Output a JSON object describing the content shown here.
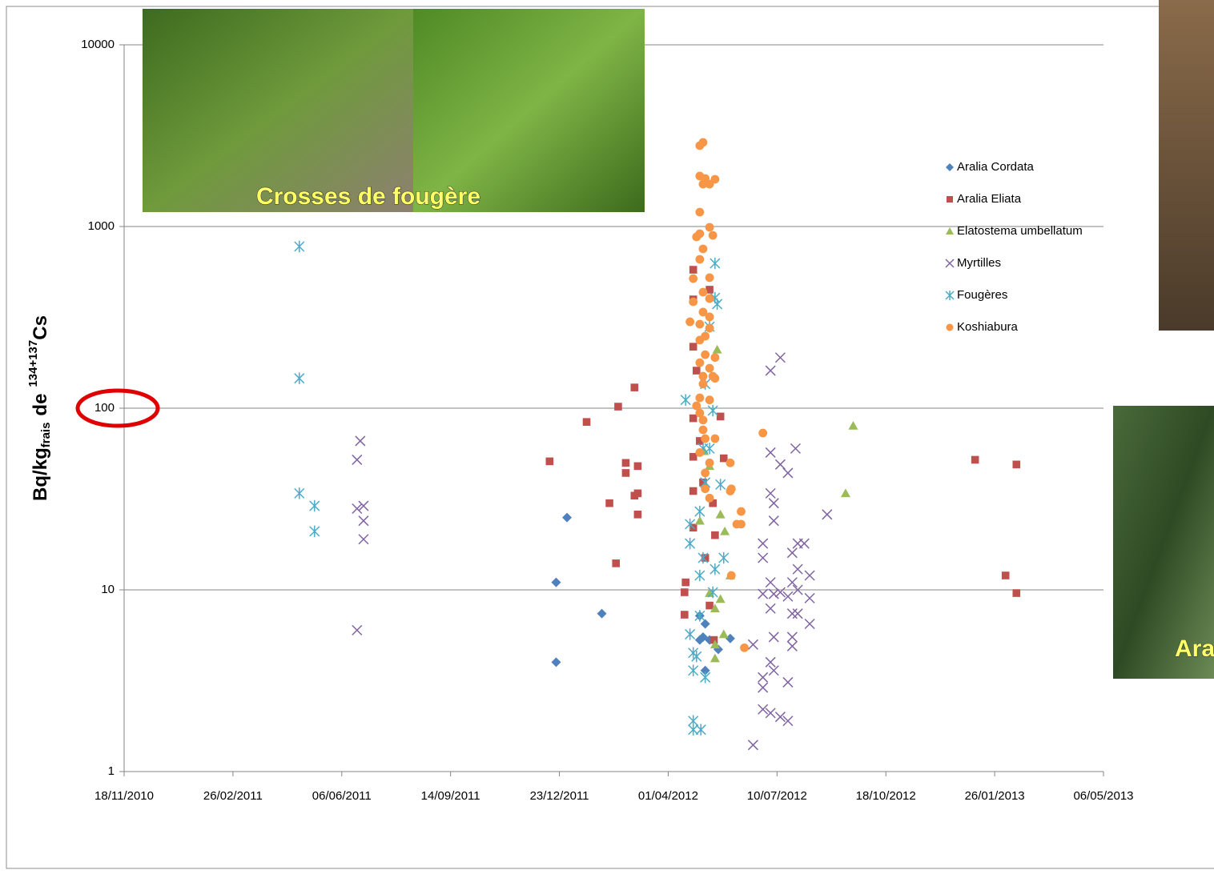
{
  "chart_data": {
    "type": "scatter",
    "y_label": {
      "main": "Bq/kg",
      "sub": "frais",
      "word": "de",
      "sup": "134+137",
      "element": "Cs"
    },
    "annotations": [
      "Crosses de fougère",
      "Ara"
    ],
    "xlim": [
      "2010-11-18",
      "2013-05-06"
    ],
    "xticks": [
      {
        "value": "2010-11-18",
        "label": "18/11/2010"
      },
      {
        "value": "2011-02-26",
        "label": "26/02/2011"
      },
      {
        "value": "2011-06-06",
        "label": "06/06/2011"
      },
      {
        "value": "2011-09-14",
        "label": "14/09/2011"
      },
      {
        "value": "2011-12-23",
        "label": "23/12/2011"
      },
      {
        "value": "2012-04-01",
        "label": "01/04/2012"
      },
      {
        "value": "2012-07-10",
        "label": "10/07/2012"
      },
      {
        "value": "2012-10-18",
        "label": "18/10/2012"
      },
      {
        "value": "2013-01-26",
        "label": "26/01/2013"
      },
      {
        "value": "2013-05-06",
        "label": "06/05/2013"
      }
    ],
    "ylim": [
      1,
      10000
    ],
    "yticks": [
      1,
      10,
      100,
      1000,
      10000
    ],
    "log_y": true,
    "grid": true,
    "legend": "upper right",
    "series": [
      {
        "name": "Aralia Cordata",
        "color": "#4f81bd",
        "marker": "diamond",
        "x": [
          "2011-12-30",
          "2011-12-20",
          "2011-12-20",
          "2012-01-31",
          "2012-04-30",
          "2012-05-05",
          "2012-05-03",
          "2012-05-09",
          "2012-04-30",
          "2012-05-05",
          "2012-05-28",
          "2012-05-17"
        ],
        "values": [
          25,
          11,
          4,
          7.4,
          7.2,
          6.5,
          5.5,
          5.3,
          5.3,
          3.6,
          5.4,
          4.7
        ]
      },
      {
        "name": "Aralia Eliata",
        "color": "#c0504d",
        "marker": "square",
        "x": [
          "2011-12-14",
          "2012-01-17",
          "2012-02-07",
          "2012-02-13",
          "2012-02-15",
          "2012-02-22",
          "2012-02-22",
          "2012-03-01",
          "2012-03-01",
          "2012-03-04",
          "2012-03-04",
          "2012-03-04",
          "2012-04-16",
          "2012-04-16",
          "2012-04-17",
          "2012-04-24",
          "2012-04-24",
          "2012-04-24",
          "2012-04-24",
          "2012-04-24",
          "2012-04-24",
          "2012-04-24",
          "2012-04-27",
          "2012-04-30",
          "2012-05-03",
          "2012-05-05",
          "2012-05-09",
          "2012-05-09",
          "2012-05-12",
          "2012-05-14",
          "2012-05-19",
          "2012-05-22",
          "2012-05-13",
          "2013-01-08",
          "2013-02-05",
          "2013-02-15",
          "2013-02-15"
        ],
        "values": [
          51,
          84,
          30,
          14,
          102,
          50,
          44,
          130,
          33,
          48,
          34,
          26,
          9.7,
          7.3,
          11,
          578,
          397,
          218,
          88,
          54,
          35,
          22,
          161,
          66,
          39,
          15,
          8.2,
          449,
          30,
          20,
          90,
          53,
          5.3,
          52,
          12,
          49,
          9.6
        ]
      },
      {
        "name": "Elatostema umbellatum",
        "color": "#9bbb59",
        "marker": "triangle",
        "x": [
          "2012-09-18",
          "2012-09-11",
          "2012-05-16",
          "2012-05-09",
          "2012-05-09",
          "2012-05-14",
          "2012-05-19",
          "2012-05-23",
          "2012-05-28",
          "2012-05-19",
          "2012-05-14",
          "2012-05-14",
          "2012-05-04",
          "2012-04-30",
          "2012-05-22"
        ],
        "values": [
          80,
          34,
          210,
          48,
          9.6,
          7.9,
          26,
          21,
          12,
          8.9,
          5,
          4.2,
          58,
          24,
          5.7
        ]
      },
      {
        "name": "Myrtilles",
        "color": "#8064a2",
        "marker": "x",
        "x": [
          "2011-06-20",
          "2011-06-23",
          "2011-06-20",
          "2011-06-26",
          "2011-06-26",
          "2011-06-26",
          "2011-06-20",
          "2012-07-13",
          "2012-07-04",
          "2012-07-04",
          "2012-07-13",
          "2012-07-20",
          "2012-07-27",
          "2012-07-04",
          "2012-07-07",
          "2012-07-07",
          "2012-06-27",
          "2012-06-27",
          "2012-07-04",
          "2012-07-04",
          "2012-07-07",
          "2012-06-27",
          "2012-07-07",
          "2012-07-04",
          "2012-07-07",
          "2012-06-27",
          "2012-06-27",
          "2012-06-27",
          "2012-07-04",
          "2012-07-13",
          "2012-07-20",
          "2012-06-18",
          "2012-06-18",
          "2012-07-20",
          "2012-07-24",
          "2012-07-29",
          "2012-08-04",
          "2012-07-24",
          "2012-07-29",
          "2012-07-24",
          "2012-07-29",
          "2012-07-24",
          "2012-07-24",
          "2012-07-20",
          "2012-08-09",
          "2012-08-09",
          "2012-08-09",
          "2012-08-25",
          "2012-07-13",
          "2012-07-29"
        ],
        "values": [
          52,
          66,
          28,
          29,
          24,
          19,
          6,
          190,
          161,
          57,
          49,
          44,
          60,
          34,
          30,
          24,
          18,
          15,
          11,
          7.9,
          9.5,
          9.5,
          5.5,
          4,
          3.6,
          3.3,
          2.9,
          2.2,
          2.1,
          2,
          1.9,
          1.4,
          5,
          3.1,
          16,
          18,
          18,
          11,
          10,
          7.4,
          7.4,
          5.5,
          4.9,
          9.2,
          12,
          9,
          6.5,
          26,
          9.7,
          13
        ]
      },
      {
        "name": "Fougères",
        "color": "#4bacc6",
        "marker": "asterisk",
        "x": [
          "2011-04-28",
          "2011-04-28",
          "2011-04-28",
          "2011-05-12",
          "2011-05-12",
          "2012-04-17",
          "2012-04-21",
          "2012-04-21",
          "2012-04-21",
          "2012-04-24",
          "2012-04-24",
          "2012-04-24",
          "2012-04-24",
          "2012-05-01",
          "2012-04-27",
          "2012-04-30",
          "2012-05-03",
          "2012-04-30",
          "2012-05-03",
          "2012-05-09",
          "2012-05-05",
          "2012-05-09",
          "2012-05-12",
          "2012-05-14",
          "2012-05-14",
          "2012-05-16",
          "2012-05-05",
          "2012-05-12",
          "2012-05-19",
          "2012-05-22",
          "2012-05-14",
          "2012-05-05",
          "2012-04-30"
        ],
        "values": [
          776,
          146,
          34,
          29,
          21,
          111,
          23,
          18,
          5.7,
          4.5,
          3.6,
          1.9,
          1.7,
          1.7,
          4.3,
          12,
          15,
          27,
          60,
          60,
          136,
          281,
          97,
          627,
          405,
          374,
          3.3,
          9.7,
          38,
          15,
          13,
          39,
          7.2
        ]
      },
      {
        "name": "Koshiabura",
        "color": "#f79646",
        "marker": "circle",
        "x": [
          "2012-04-30",
          "2012-05-03",
          "2012-04-30",
          "2012-05-05",
          "2012-05-14",
          "2012-05-03",
          "2012-05-09",
          "2012-04-30",
          "2012-05-09",
          "2012-04-30",
          "2012-04-27",
          "2012-05-12",
          "2012-05-03",
          "2012-04-30",
          "2012-05-09",
          "2012-04-24",
          "2012-05-03",
          "2012-05-09",
          "2012-04-24",
          "2012-05-03",
          "2012-05-09",
          "2012-04-21",
          "2012-04-30",
          "2012-05-09",
          "2012-05-05",
          "2012-04-30",
          "2012-05-05",
          "2012-05-14",
          "2012-04-30",
          "2012-05-09",
          "2012-05-03",
          "2012-05-12",
          "2012-05-14",
          "2012-05-03",
          "2012-04-30",
          "2012-05-09",
          "2012-04-27",
          "2012-04-30",
          "2012-05-03",
          "2012-05-05",
          "2012-05-14",
          "2012-04-30",
          "2012-05-09",
          "2012-05-05",
          "2012-05-05",
          "2012-05-09",
          "2012-05-28",
          "2012-05-29",
          "2012-05-28",
          "2012-06-07",
          "2012-06-07",
          "2012-06-03",
          "2012-05-29",
          "2012-06-10",
          "2012-06-27",
          "2012-05-03"
        ],
        "values": [
          2786,
          2904,
          1896,
          1838,
          1820,
          1711,
          1711,
          1200,
          990,
          913,
          877,
          894,
          753,
          660,
          523,
          517,
          435,
          401,
          385,
          338,
          318,
          299,
          290,
          276,
          249,
          237,
          197,
          190,
          178,
          166,
          150,
          150,
          146,
          136,
          114,
          111,
          103,
          94,
          76,
          68,
          68,
          57,
          50,
          44,
          36,
          32,
          50,
          36,
          35,
          27,
          23,
          23,
          12,
          4.8,
          73,
          86
        ]
      }
    ]
  }
}
